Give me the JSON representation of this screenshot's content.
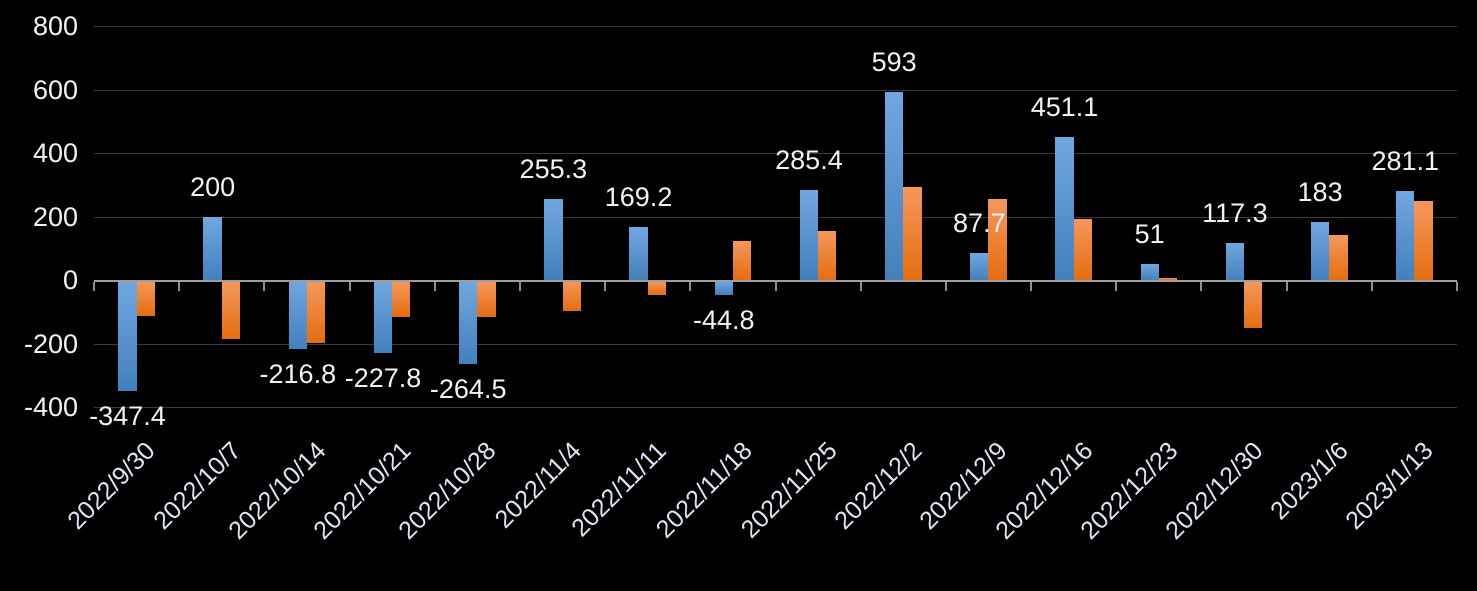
{
  "chart_data": {
    "type": "bar",
    "title": "",
    "background": "#000000",
    "grid": true,
    "legend": "none",
    "categories": [
      "2022/9/30",
      "2022/10/7",
      "2022/10/14",
      "2022/10/21",
      "2022/10/28",
      "2022/11/4",
      "2022/11/11",
      "2022/11/18",
      "2022/11/25",
      "2022/12/2",
      "2022/12/9",
      "2022/12/16",
      "2022/12/23",
      "2022/12/30",
      "2023/1/6",
      "2023/1/13"
    ],
    "series": [
      {
        "id": "blue",
        "color_top": "#71A7E0",
        "color_bottom": "#4280BE",
        "values": [
          -347.4,
          200,
          -216.8,
          -227.8,
          -264.5,
          255.3,
          169.2,
          -44.8,
          285.4,
          593,
          87.7,
          451.1,
          51,
          117.3,
          183,
          281.1
        ],
        "labels": [
          "-347.4",
          "200",
          "-216.8",
          "-227.8",
          "-264.5",
          "255.3",
          "169.2",
          "-44.8",
          "285.4",
          "593",
          "87.7",
          "451.1",
          "51",
          "117.3",
          "183",
          "281.1"
        ]
      },
      {
        "id": "orange",
        "color_top": "#F5985C",
        "color_bottom": "#E56D10",
        "values": [
          -112,
          -185,
          -198,
          -116,
          -114,
          -95,
          -47,
          124,
          156,
          295,
          256,
          193,
          8,
          -149,
          144,
          250
        ],
        "labels": null
      }
    ],
    "y_axis": {
      "min": -400,
      "max": 800,
      "tick_values": [
        800,
        600,
        400,
        200,
        0,
        -200,
        -400
      ],
      "tick_labels": [
        "800",
        "600",
        "400",
        "200",
        "0",
        "-200",
        "-400"
      ]
    },
    "colors": {
      "gridline": "#3b3b3b",
      "axis_line": "#9e9e9e",
      "axis_tick": "#8f8f8f",
      "ytick_text": "#f2f2f2",
      "value_text": "#f2f2f2",
      "date_text": "#dde6f2"
    }
  }
}
